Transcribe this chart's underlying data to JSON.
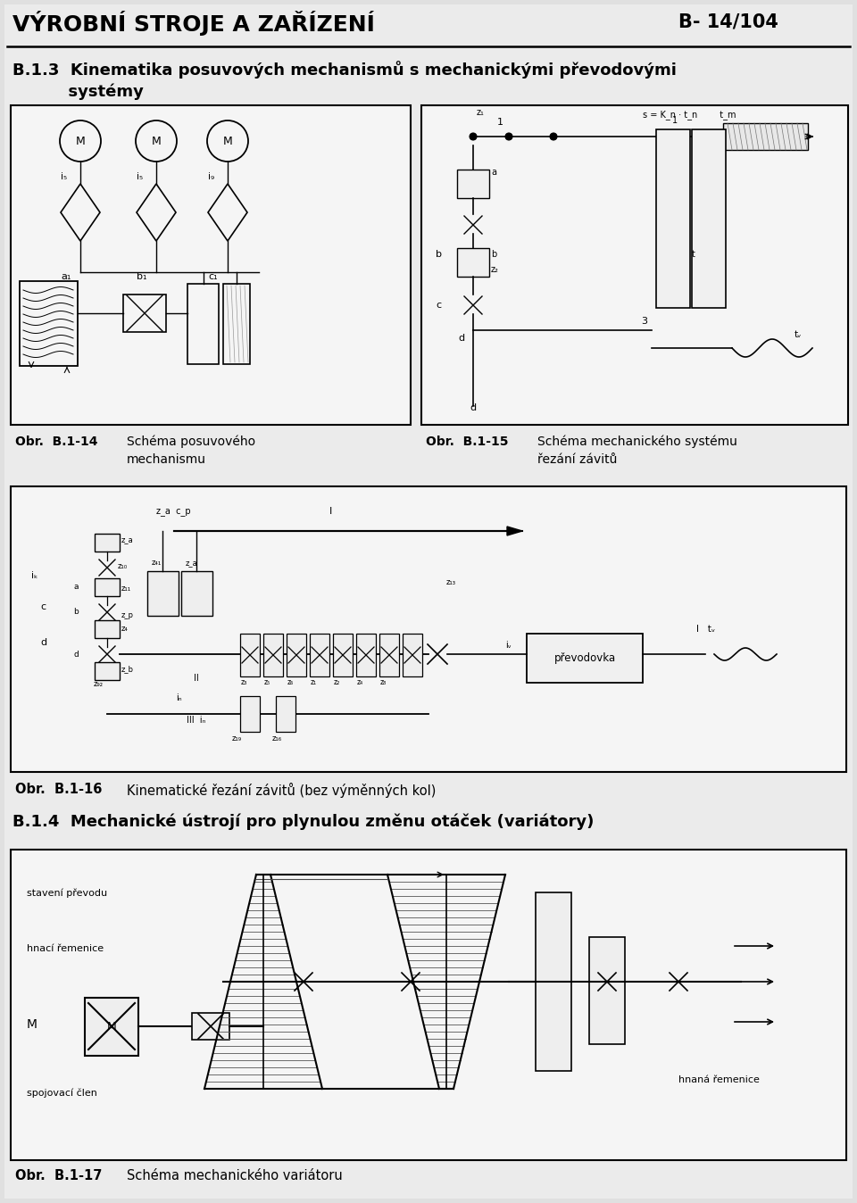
{
  "title_left": "VÝROBNÍ STROJE A ZAŘÍZENÍ",
  "title_right": "B- 14/104",
  "section_title_line1": "B.1.3  Kinematika posuvových mechanismů s mechanickými převodovými",
  "section_title_line2": "          systémy",
  "caption_b114_label": "Obr.  B.1-14",
  "caption_b114_text1": "Schéma posuvového",
  "caption_b114_text2": "mechanismu",
  "caption_b115_label": "Obr.  B.1-15",
  "caption_b115_text1": "Schéma mechanického systému",
  "caption_b115_text2": "řezání závitů",
  "caption_b116_label": "Obr.  B.1-16",
  "caption_b116_text": "Kinematické řezání závitů (bez výměnných kol)",
  "section_b14": "B.1.4  Mechanické ústrojí pro plynulou změnu otáček (variátory)",
  "caption_b117_label": "Obr.  B.1-17",
  "caption_b117_text": "Schéma mechanického variátoru",
  "bg_color": "#d8d8d8",
  "box_bg": "#f0f0f0",
  "border_color": "#000000",
  "text_color": "#000000",
  "fig_width": 9.6,
  "fig_height": 13.48,
  "dpi": 100
}
